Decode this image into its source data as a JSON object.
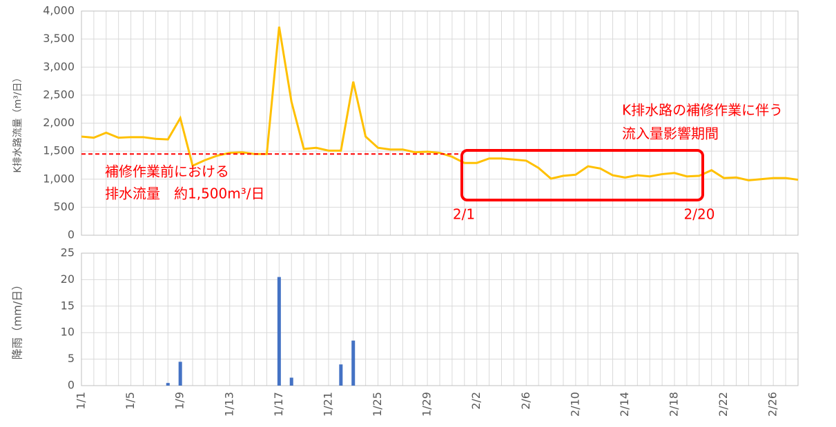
{
  "chart_data": [
    {
      "type": "line",
      "ylabel": "K排水路流量（m³/日）",
      "series": [
        {
          "name": "K排水路流量",
          "color": "#ffc000",
          "values": [
            1760,
            1740,
            1830,
            1740,
            1750,
            1750,
            1720,
            1710,
            2090,
            1240,
            1340,
            1420,
            1470,
            1480,
            1450,
            1450,
            3720,
            2380,
            1540,
            1560,
            1510,
            1510,
            2740,
            1760,
            1560,
            1530,
            1530,
            1480,
            1490,
            1470,
            1400,
            1290,
            1290,
            1370,
            1370,
            1350,
            1330,
            1200,
            1010,
            1060,
            1080,
            1230,
            1190,
            1070,
            1030,
            1070,
            1050,
            1090,
            1110,
            1050,
            1060,
            1160,
            1020,
            1030,
            980,
            1000,
            1020,
            1020,
            990
          ]
        }
      ],
      "ylim": [
        0,
        4000
      ],
      "yticks": [
        0,
        500,
        {
          "value": 1000,
          "label": "1,000"
        },
        {
          "value": 1500,
          "label": "1,500"
        },
        {
          "value": 2000,
          "label": "2,000"
        },
        {
          "value": 2500,
          "label": "2,500"
        },
        {
          "value": 3000,
          "label": "3,000"
        },
        {
          "value": 3500,
          "label": "3,500"
        },
        {
          "value": 4000,
          "label": "4,000"
        }
      ],
      "reference_line": {
        "value": 1450,
        "color": "#ff0000"
      },
      "annotations": [
        "補修作業前における",
        "排水流量　約1,500m³/日",
        "K排水路の補修作業に伴う",
        "流入量影響期間",
        "2/1",
        "2/20"
      ],
      "grid": true
    },
    {
      "type": "bar",
      "ylabel": "降雨（mm/日）",
      "categories": [
        "1/1",
        null,
        null,
        null,
        "1/5",
        null,
        null,
        null,
        "1/9",
        null,
        null,
        null,
        "1/13",
        null,
        null,
        null,
        "1/17",
        null,
        null,
        null,
        "1/21",
        null,
        null,
        null,
        "1/25",
        null,
        null,
        null,
        "1/29",
        null,
        null,
        null,
        "2/2",
        null,
        null,
        null,
        "2/6",
        null,
        null,
        null,
        "2/10",
        null,
        null,
        null,
        "2/14",
        null,
        null,
        null,
        "2/18",
        null,
        null,
        null,
        "2/22",
        null,
        null,
        null,
        "2/26",
        null,
        null
      ],
      "series": [
        {
          "name": "降雨",
          "color": "#4472c4",
          "values": [
            0,
            0,
            0,
            0,
            0,
            0,
            0,
            0.5,
            4.5,
            0,
            0,
            0,
            0,
            0,
            0,
            0,
            20.5,
            1.5,
            0,
            0,
            0,
            4,
            8.5,
            0,
            0,
            0,
            0,
            0,
            0,
            0,
            0,
            0,
            0,
            0,
            0,
            0,
            0,
            0,
            0,
            0,
            0,
            0,
            0,
            0,
            0,
            0,
            0,
            0,
            0,
            0,
            0,
            0,
            0,
            0,
            0,
            0,
            0,
            0,
            0
          ]
        }
      ],
      "ylim": [
        0,
        25
      ],
      "yticks": [
        0,
        5,
        10,
        15,
        20,
        25
      ],
      "grid": true
    }
  ]
}
